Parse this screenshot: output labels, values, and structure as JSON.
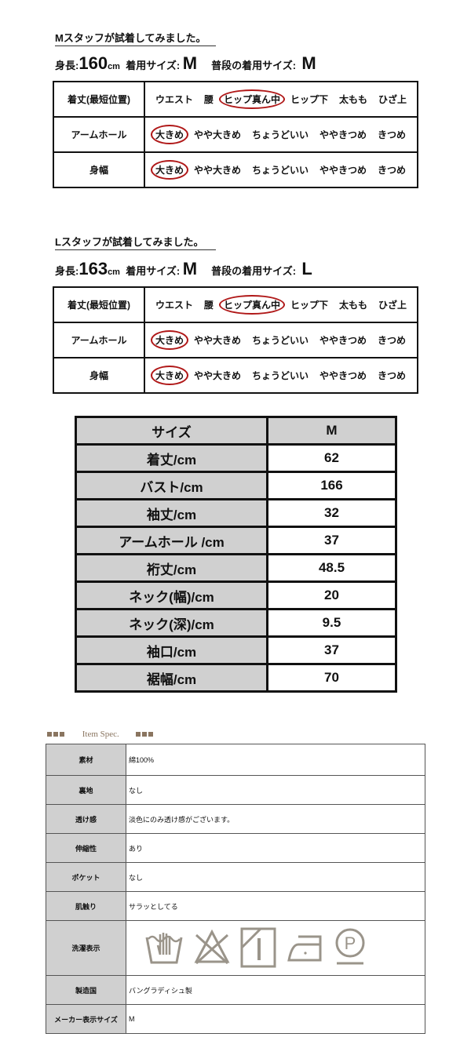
{
  "fittings": [
    {
      "title": "Mスタッフが試着してみました。",
      "height_label": "身長:",
      "height": "160",
      "height_unit": "cm",
      "worn_label": "着用サイズ:",
      "worn": "M",
      "usual_label": "普段の着用サイズ:",
      "usual": "M",
      "rows": [
        {
          "label": "着丈(最短位置)",
          "options": [
            "ウエスト",
            "腰",
            "ヒップ真ん中",
            "ヒップ下",
            "太もも",
            "ひざ上"
          ],
          "selected": "ヒップ真ん中"
        },
        {
          "label": "アームホール",
          "options": [
            "大きめ",
            "やや大きめ",
            "ちょうどいい",
            "ややきつめ",
            "きつめ"
          ],
          "selected": "大きめ"
        },
        {
          "label": "身幅",
          "options": [
            "大きめ",
            "やや大きめ",
            "ちょうどいい",
            "ややきつめ",
            "きつめ"
          ],
          "selected": "大きめ"
        }
      ]
    },
    {
      "title": "Lスタッフが試着してみました。",
      "height_label": "身長:",
      "height": "163",
      "height_unit": "cm",
      "worn_label": "着用サイズ:",
      "worn": "M",
      "usual_label": "普段の着用サイズ:",
      "usual": "L",
      "rows": [
        {
          "label": "着丈(最短位置)",
          "options": [
            "ウエスト",
            "腰",
            "ヒップ真ん中",
            "ヒップ下",
            "太もも",
            "ひざ上"
          ],
          "selected": "ヒップ真ん中"
        },
        {
          "label": "アームホール",
          "options": [
            "大きめ",
            "やや大きめ",
            "ちょうどいい",
            "ややきつめ",
            "きつめ"
          ],
          "selected": "大きめ"
        },
        {
          "label": "身幅",
          "options": [
            "大きめ",
            "やや大きめ",
            "ちょうどいい",
            "ややきつめ",
            "きつめ"
          ],
          "selected": "大きめ"
        }
      ]
    }
  ],
  "size_table": {
    "header": [
      "サイズ",
      "M"
    ],
    "rows": [
      [
        "着丈/cm",
        "62"
      ],
      [
        "バスト/cm",
        "166"
      ],
      [
        "袖丈/cm",
        "32"
      ],
      [
        "アームホール /cm",
        "37"
      ],
      [
        "裄丈/cm",
        "48.5"
      ],
      [
        "ネック(幅)/cm",
        "20"
      ],
      [
        "ネック(深)/cm",
        "9.5"
      ],
      [
        "袖口/cm",
        "37"
      ],
      [
        "裾幅/cm",
        "70"
      ]
    ]
  },
  "spec": {
    "heading": "Item Spec.",
    "accent": "#8a7560",
    "rows": [
      {
        "label": "素材",
        "value": "綿100%"
      },
      {
        "label": "裏地",
        "value": "なし"
      },
      {
        "label": "透け感",
        "value": "淡色にのみ透け感がございます。"
      },
      {
        "label": "伸縮性",
        "value": "あり"
      },
      {
        "label": "ポケット",
        "value": "なし"
      },
      {
        "label": "肌触り",
        "value": "サラッとしてる"
      },
      {
        "label": "洗濯表示",
        "icons": [
          "hand-wash-icon",
          "no-bleach-icon",
          "drip-dry-shade-icon",
          "low-iron-icon",
          "dry-clean-p-icon"
        ]
      },
      {
        "label": "製造国",
        "value": "バングラディシュ製"
      },
      {
        "label": "メーカー表示サイズ",
        "value": "M"
      }
    ]
  }
}
